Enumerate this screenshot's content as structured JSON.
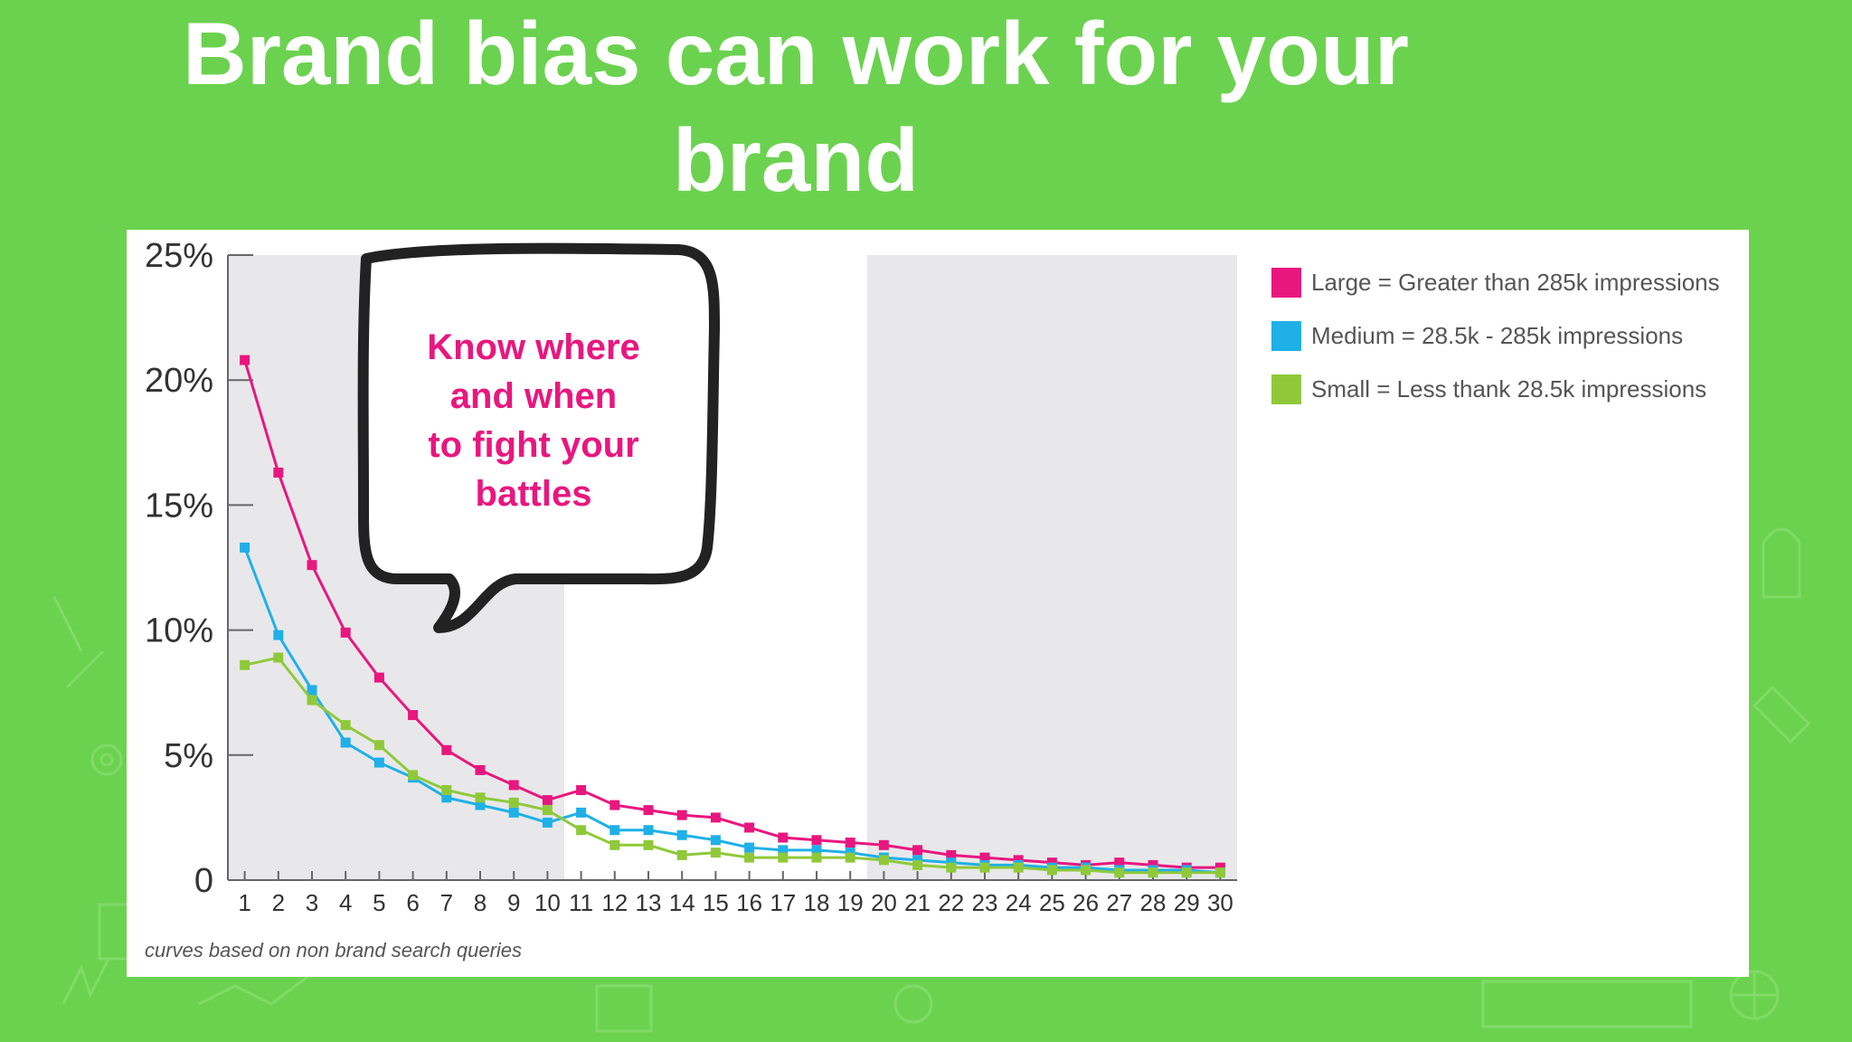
{
  "slide": {
    "title": "Brand bias can work for your brand"
  },
  "callout": {
    "lines": [
      "Know where",
      "and when",
      "to fight your",
      "battles"
    ]
  },
  "footnote": "curves based on non brand search queries",
  "colors": {
    "background": "#6bd24f",
    "large": "#e8177f",
    "medium": "#1fb0e8",
    "small": "#8fc93a",
    "shade": "#e8e8ea"
  },
  "chart_data": {
    "type": "line",
    "x": [
      1,
      2,
      3,
      4,
      5,
      6,
      7,
      8,
      9,
      10,
      11,
      12,
      13,
      14,
      15,
      16,
      17,
      18,
      19,
      20,
      21,
      22,
      23,
      24,
      25,
      26,
      27,
      28,
      29,
      30
    ],
    "ylim": [
      0,
      25
    ],
    "y_ticks": [
      "0",
      "5%",
      "10%",
      "15%",
      "20%",
      "25%"
    ],
    "y_tick_values": [
      0,
      5,
      10,
      15,
      20,
      25
    ],
    "shaded_ranges": [
      [
        1,
        10
      ],
      [
        20,
        30
      ]
    ],
    "legend_position": "top-right",
    "series": [
      {
        "name": "Large = Greater than 285k impressions",
        "color": "#e8177f",
        "values": [
          20.8,
          16.3,
          12.6,
          9.9,
          8.1,
          6.6,
          5.2,
          4.4,
          3.8,
          3.2,
          3.6,
          3.0,
          2.8,
          2.6,
          2.5,
          2.1,
          1.7,
          1.6,
          1.5,
          1.4,
          1.2,
          1.0,
          0.9,
          0.8,
          0.7,
          0.6,
          0.7,
          0.6,
          0.5,
          0.5
        ]
      },
      {
        "name": "Medium = 28.5k - 285k impressions",
        "color": "#1fb0e8",
        "values": [
          13.3,
          9.8,
          7.6,
          5.5,
          4.7,
          4.1,
          3.3,
          3.0,
          2.7,
          2.3,
          2.7,
          2.0,
          2.0,
          1.8,
          1.6,
          1.3,
          1.2,
          1.2,
          1.1,
          0.9,
          0.8,
          0.7,
          0.6,
          0.6,
          0.5,
          0.5,
          0.4,
          0.4,
          0.4,
          0.3
        ]
      },
      {
        "name": "Small = Less thank 28.5k impressions",
        "color": "#8fc93a",
        "values": [
          8.6,
          8.9,
          7.2,
          6.2,
          5.4,
          4.2,
          3.6,
          3.3,
          3.1,
          2.8,
          2.0,
          1.4,
          1.4,
          1.0,
          1.1,
          0.9,
          0.9,
          0.9,
          0.9,
          0.8,
          0.6,
          0.5,
          0.5,
          0.5,
          0.4,
          0.4,
          0.3,
          0.3,
          0.3,
          0.3
        ]
      }
    ]
  }
}
